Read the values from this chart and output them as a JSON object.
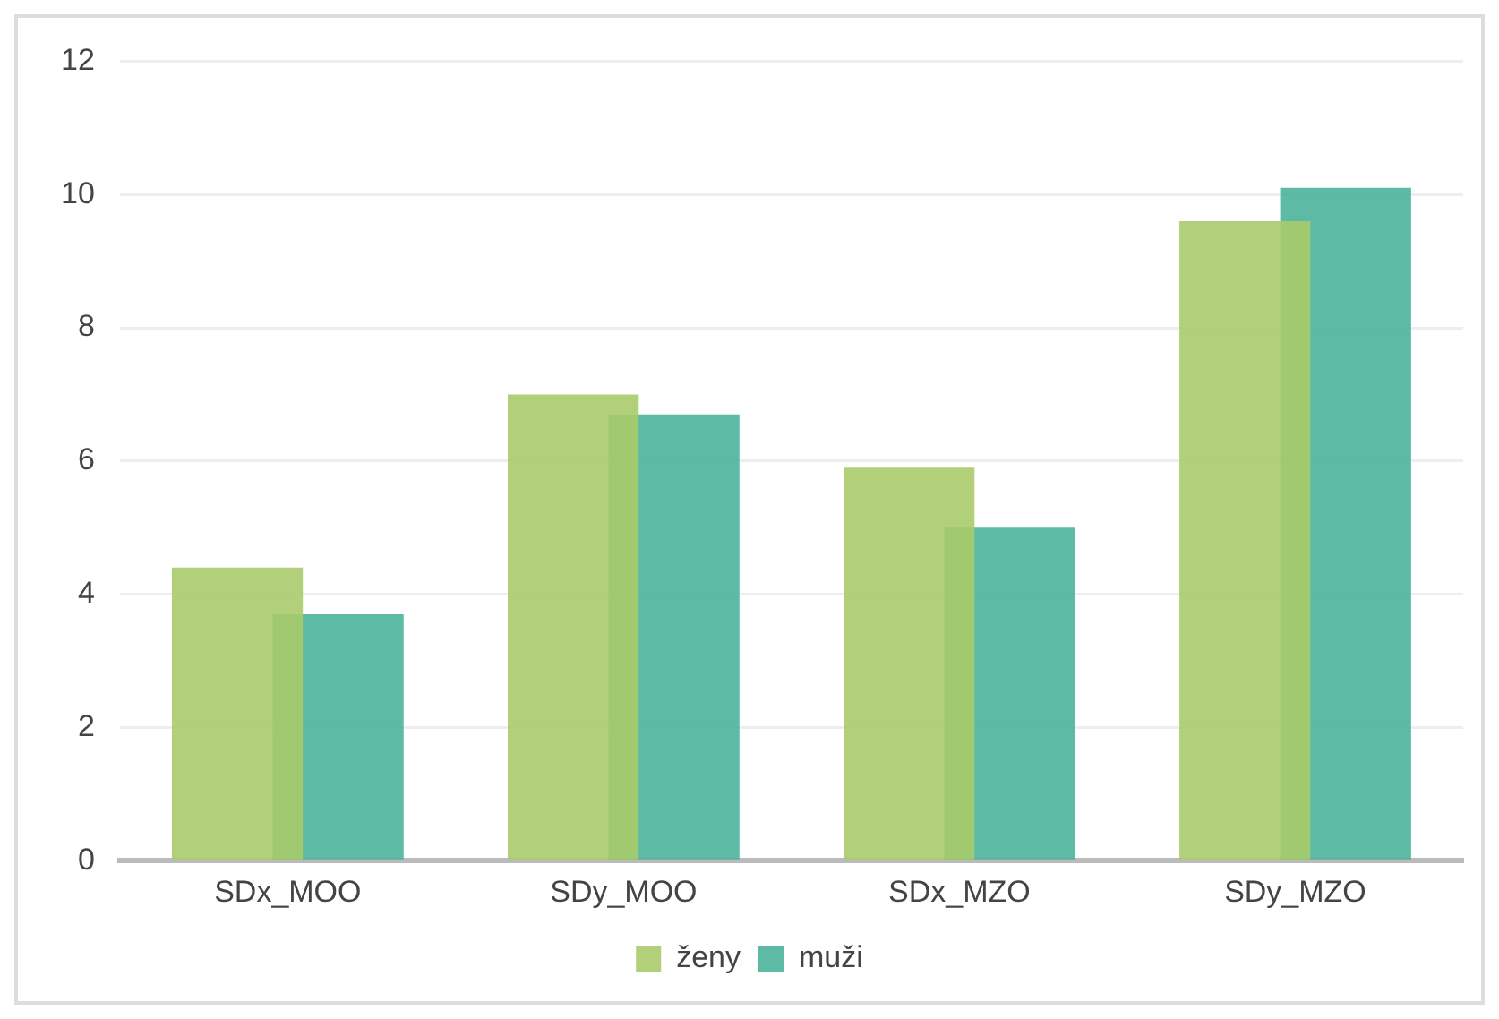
{
  "chart_data": {
    "type": "bar",
    "categories": [
      "SDx_MOO",
      "SDy_MOO",
      "SDx_MZO",
      "SDy_MZO"
    ],
    "series": [
      {
        "name": "ženy",
        "color": "#a9cb6a",
        "values": [
          4.4,
          7.0,
          5.9,
          9.6
        ]
      },
      {
        "name": "muži",
        "color": "#4bb39a",
        "values": [
          3.7,
          6.7,
          5.0,
          10.1
        ]
      }
    ],
    "ylim": [
      0,
      12
    ],
    "yticks": [
      0,
      2,
      4,
      6,
      8,
      10,
      12
    ],
    "grid": "y",
    "legend": "bottom"
  }
}
